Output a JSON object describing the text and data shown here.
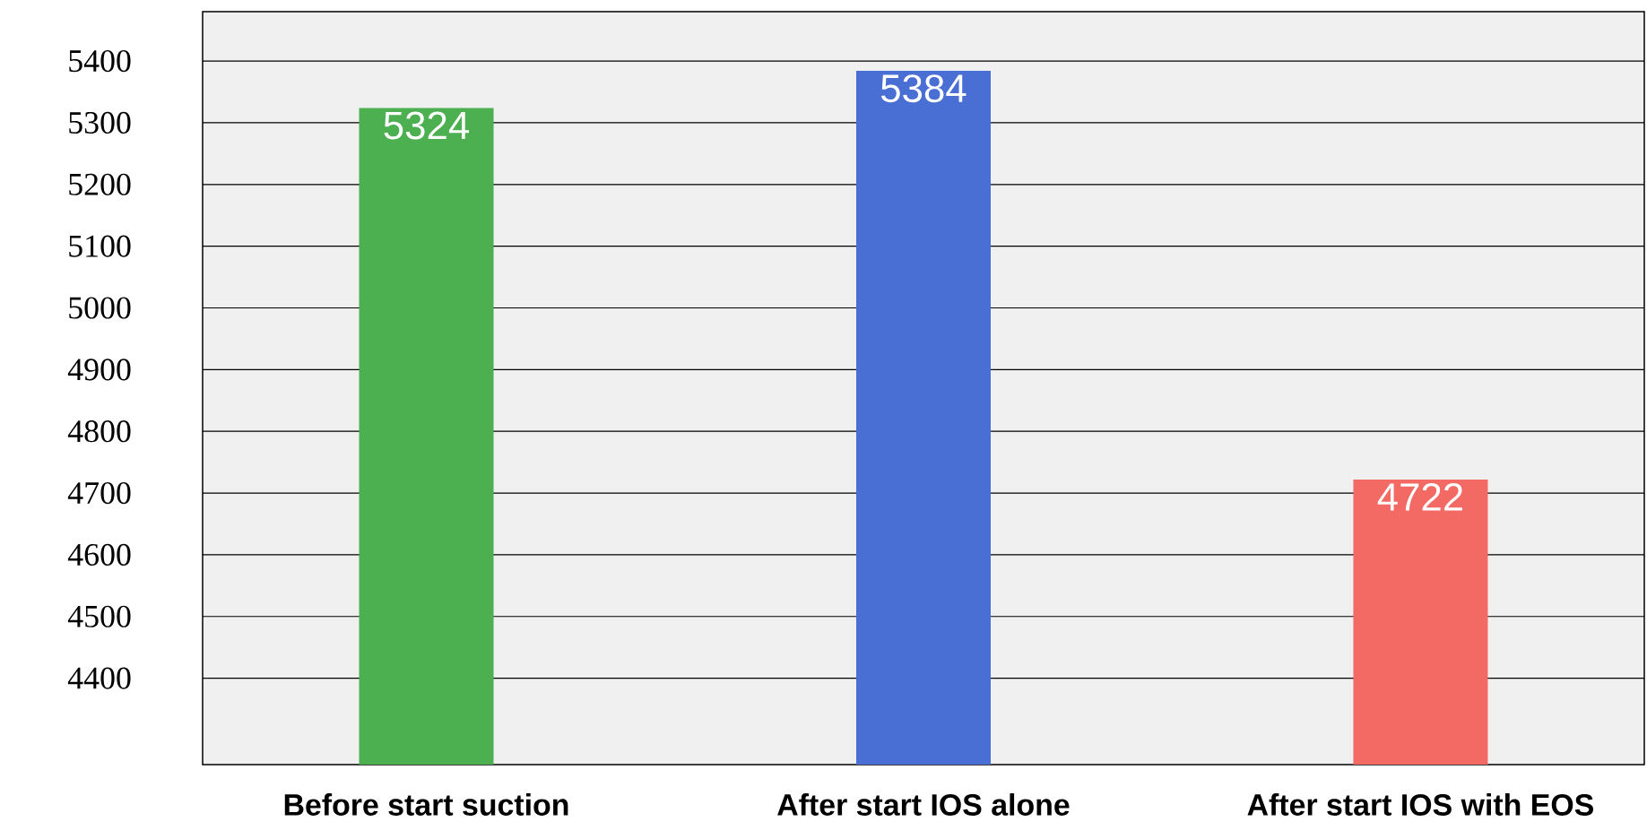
{
  "chart_data": {
    "type": "bar",
    "categories": [
      "Before start suction",
      "After start IOS alone",
      "After start IOS with EOS"
    ],
    "values": [
      5324,
      5384,
      4722
    ],
    "colors": [
      "#4caf50",
      "#4a6fd4",
      "#f26a63"
    ],
    "ylim": [
      4260,
      5480
    ],
    "yticks": [
      4400,
      4500,
      4600,
      4700,
      4800,
      4900,
      5000,
      5100,
      5200,
      5300,
      5400
    ],
    "grid": "y",
    "data_labels": true
  }
}
